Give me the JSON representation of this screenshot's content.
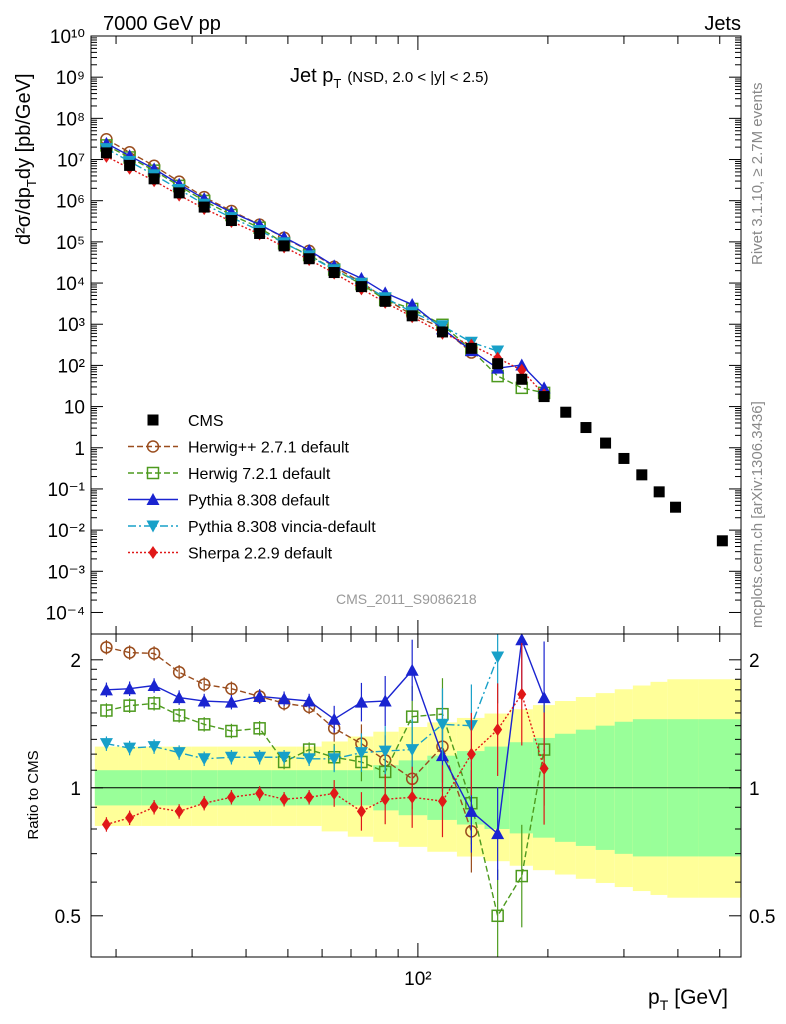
{
  "header": {
    "left": "7000 GeV pp",
    "right": "Jets"
  },
  "side_labels": {
    "rivet": "Rivet 3.1.10, ≥ 2.7M events",
    "mcplots": "mcplots.cern.ch [arXiv:1306.3436]"
  },
  "watermark": "CMS_2011_S9086218",
  "chart_data": {
    "type": "scatter",
    "title_main": "Jet p",
    "title_sub": "T",
    "title_extra": "(NSD, 2.0 < |y| < 2.5)",
    "xlabel_main": "p",
    "xlabel_sub": "T",
    "xlabel_unit": "[GeV]",
    "ylabel_main": "d²σ/dp",
    "ylabel_sub": "T",
    "ylabel_unit": "dy [pb/GeV]",
    "ratio_ylabel": "Ratio to CMS",
    "x_scale": "log",
    "xlim": [
      17.5,
      560
    ],
    "ylim": [
      3e-05,
      10000000000.0
    ],
    "ratio_ylim": [
      0.4,
      2.3
    ],
    "x_ticklabels": [
      "10²"
    ],
    "y_ticklabels": [
      "10¹⁰",
      "10⁹",
      "10⁸",
      "10⁷",
      "10⁶",
      "10⁵",
      "10⁴",
      "10³",
      "10²",
      "10",
      "1",
      "10⁻¹",
      "10⁻²",
      "10⁻³",
      "10⁻⁴"
    ],
    "ratio_ticklabels": [
      "2",
      "1",
      "0.5"
    ],
    "legend_position": "bottom-left",
    "data": {
      "name": "CMS",
      "color": "#000000",
      "x": [
        19,
        21.5,
        24.5,
        28,
        32,
        37,
        43,
        49,
        56,
        64,
        74,
        84,
        97,
        114,
        133,
        153,
        174,
        196,
        220,
        245,
        272,
        300,
        330,
        362,
        395,
        507
      ],
      "y": [
        14500000.0,
        7200000.0,
        3400000.0,
        1550000.0,
        700000.0,
        330000.0,
        160000.0,
        80000.0,
        39000.0,
        18000.0,
        8200.0,
        3600.0,
        1600.0,
        650.0,
        260.0,
        110.0,
        46.0,
        17.5,
        7.3,
        3.1,
        1.3,
        0.55,
        0.22,
        0.085,
        0.036,
        0.0055
      ]
    },
    "series": [
      {
        "name": "Herwig++ 2.7.1 default",
        "color": "#9a4d1e",
        "marker": "circle-open",
        "dash": "6,3",
        "x": [
          19,
          21.5,
          24.5,
          28,
          32,
          37,
          43,
          49,
          56,
          64,
          74,
          84,
          97,
          114,
          133
        ],
        "ratio": [
          2.14,
          2.08,
          2.07,
          1.87,
          1.75,
          1.71,
          1.64,
          1.58,
          1.55,
          1.38,
          1.27,
          1.16,
          1.05,
          1.25,
          0.79
        ]
      },
      {
        "name": "Herwig 7.2.1 default",
        "color": "#4d9a1e",
        "marker": "square-open",
        "dash": "6,3",
        "x": [
          19,
          21.5,
          24.5,
          28,
          32,
          37,
          43,
          49,
          56,
          64,
          74,
          84,
          97,
          114,
          133,
          153,
          174,
          196
        ],
        "ratio": [
          1.52,
          1.56,
          1.58,
          1.48,
          1.41,
          1.36,
          1.38,
          1.15,
          1.23,
          1.18,
          1.15,
          1.09,
          1.47,
          1.49,
          0.92,
          0.5,
          0.62,
          1.23
        ]
      },
      {
        "name": "Pythia 8.308 default",
        "color": "#1a24d0",
        "marker": "triangle-up",
        "dash": "",
        "x": [
          19,
          21.5,
          24.5,
          28,
          32,
          37,
          43,
          49,
          56,
          64,
          74,
          84,
          97,
          114,
          133,
          153,
          174,
          196
        ],
        "ratio": [
          1.7,
          1.71,
          1.74,
          1.63,
          1.6,
          1.59,
          1.64,
          1.62,
          1.6,
          1.45,
          1.59,
          1.6,
          1.89,
          1.19,
          0.88,
          0.78,
          2.23,
          1.63
        ]
      },
      {
        "name": "Pythia 8.308 vincia-default",
        "color": "#18a0c8",
        "marker": "triangle-down",
        "dash": "8,3,2,3",
        "x": [
          19,
          21.5,
          24.5,
          28,
          32,
          37,
          43,
          49,
          56,
          64,
          74,
          84,
          97,
          114,
          133,
          153
        ],
        "ratio": [
          1.27,
          1.24,
          1.25,
          1.21,
          1.17,
          1.18,
          1.18,
          1.18,
          1.17,
          1.17,
          1.21,
          1.22,
          1.23,
          1.41,
          1.4,
          2.03
        ]
      },
      {
        "name": "Sherpa 2.2.9 default",
        "color": "#e01818",
        "marker": "diamond",
        "dash": "2,2",
        "x": [
          19,
          21.5,
          24.5,
          28,
          32,
          37,
          43,
          49,
          56,
          64,
          74,
          84,
          97,
          114,
          133,
          153,
          174,
          196
        ],
        "ratio": [
          0.82,
          0.85,
          0.9,
          0.88,
          0.92,
          0.95,
          0.97,
          0.94,
          0.95,
          0.97,
          0.88,
          0.94,
          0.95,
          0.93,
          1.2,
          1.37,
          1.66,
          1.11
        ]
      }
    ]
  }
}
